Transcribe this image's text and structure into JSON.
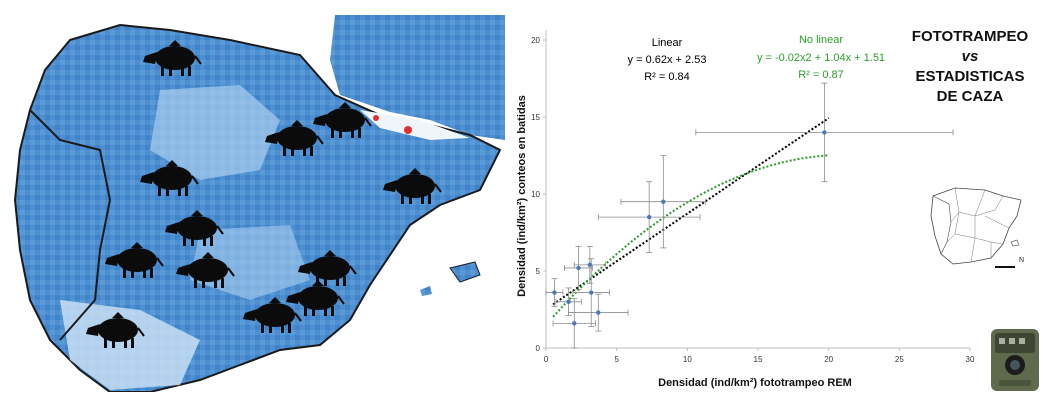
{
  "title": {
    "line1": "FOTOTRAMPEO",
    "line2": "vs",
    "line3": "ESTADISTICAS",
    "line4": "DE CAZA"
  },
  "chart_data": {
    "type": "scatter",
    "xlabel": "Densidad (ind/km²) fototrampeo REM",
    "ylabel": "Densidad  (ind/km²) conteos en batidas",
    "xlim": [
      0,
      30
    ],
    "ylim": [
      0,
      20
    ],
    "x_ticks": [
      0,
      5,
      10,
      15,
      20,
      25,
      30
    ],
    "y_ticks": [
      0,
      5,
      10,
      15,
      20
    ],
    "grid": false,
    "points": [
      {
        "x": 0.6,
        "y": 3.6,
        "xerr": 0.6,
        "yerr": 0.9
      },
      {
        "x": 1.6,
        "y": 3.0,
        "xerr": 0.9,
        "yerr": 0.9
      },
      {
        "x": 2.0,
        "y": 1.6,
        "xerr": 1.5,
        "yerr": 1.6
      },
      {
        "x": 2.3,
        "y": 5.2,
        "xerr": 1.0,
        "yerr": 1.4
      },
      {
        "x": 3.1,
        "y": 5.4,
        "xerr": 1.1,
        "yerr": 1.2
      },
      {
        "x": 3.2,
        "y": 3.6,
        "xerr": 1.3,
        "yerr": 2.2
      },
      {
        "x": 3.7,
        "y": 2.3,
        "xerr": 2.1,
        "yerr": 1.2
      },
      {
        "x": 7.3,
        "y": 8.5,
        "xerr": 3.6,
        "yerr": 2.3
      },
      {
        "x": 8.3,
        "y": 9.5,
        "xerr": 3.0,
        "yerr": 3.0
      },
      {
        "x": 19.7,
        "y": 14.0,
        "xerr": 9.1,
        "yerr": 3.2
      }
    ],
    "fits": [
      {
        "name": "Linear",
        "equation": "y = 0.62x + 2.53",
        "r2": "R² = 0.84",
        "color": "#000000",
        "coeffs": [
          2.53,
          0.62,
          0
        ],
        "x_range": [
          0.5,
          20
        ]
      },
      {
        "name": "No linear",
        "equation": "y = -0.02x2 + 1.04x + 1.51",
        "r2": "R² = 0.87",
        "color": "#2a9d2a",
        "coeffs": [
          1.51,
          1.04,
          -0.0245
        ],
        "x_range": [
          0.5,
          20
        ]
      }
    ],
    "point_color": "#4a79b5",
    "errorbar_color": "#8c8c8c"
  },
  "map": {
    "sea_color": "#ffffff",
    "land_color": "#4d8fd1",
    "light_color": "#cfe3f5",
    "dark_color": "#1f5fa6",
    "marker_color": "#e03030",
    "icons": [
      "boar-icon"
    ]
  }
}
